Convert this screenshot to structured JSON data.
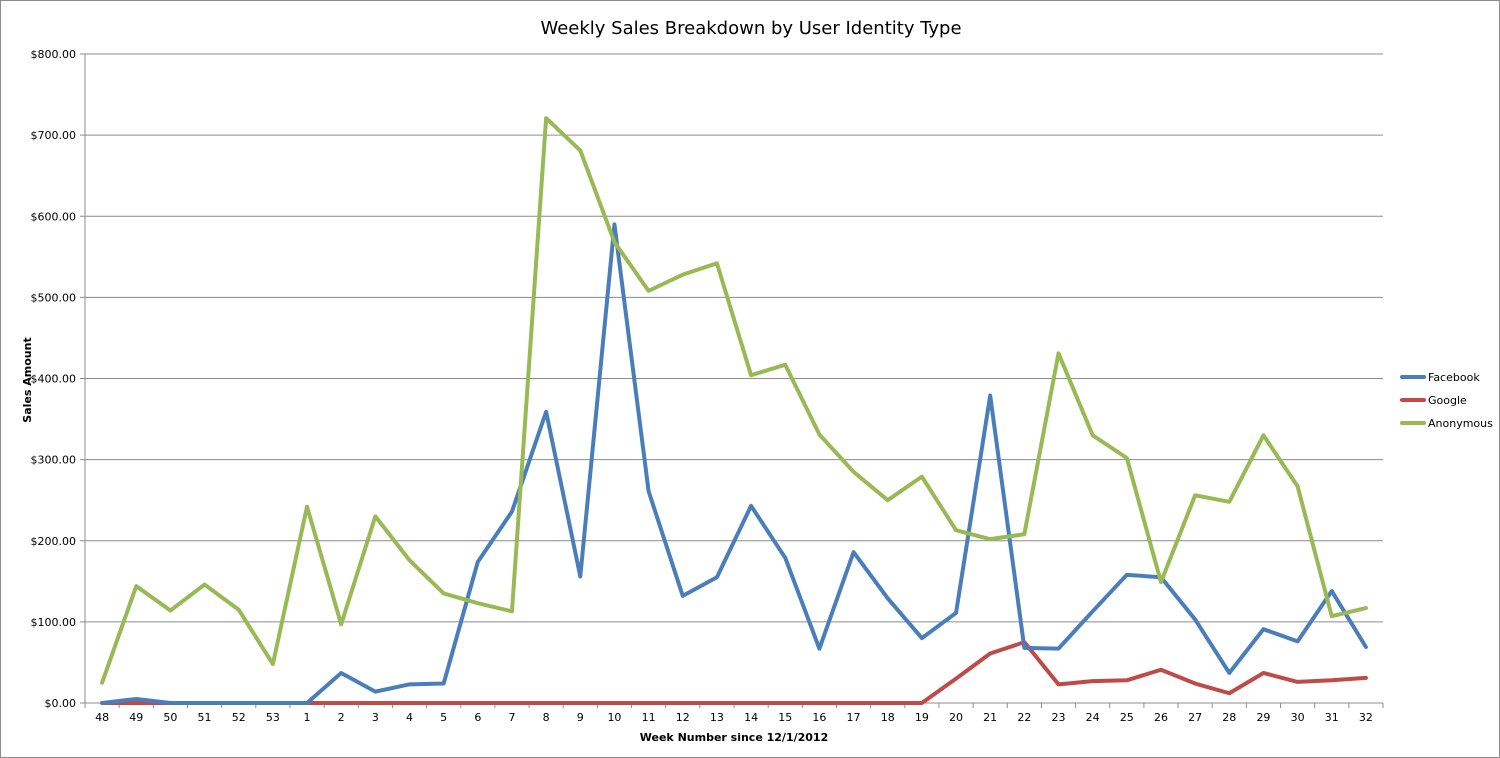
{
  "chart_data": {
    "type": "line",
    "title": "Weekly Sales Breakdown by User Identity Type",
    "xlabel": "Week Number since 12/1/2012",
    "ylabel": "Sales Amount",
    "ylim": [
      0,
      800
    ],
    "yticks": [
      0,
      100,
      200,
      300,
      400,
      500,
      600,
      700,
      800
    ],
    "ytick_labels": [
      "$0.00",
      "$100.00",
      "$200.00",
      "$300.00",
      "$400.00",
      "$500.00",
      "$600.00",
      "$700.00",
      "$800.00"
    ],
    "grid": "horizontal",
    "legend_position": "right",
    "categories": [
      "48",
      "49",
      "50",
      "51",
      "52",
      "53",
      "1",
      "2",
      "3",
      "4",
      "5",
      "6",
      "7",
      "8",
      "9",
      "10",
      "11",
      "12",
      "13",
      "14",
      "15",
      "16",
      "17",
      "18",
      "19",
      "20",
      "21",
      "22",
      "23",
      "24",
      "25",
      "26",
      "27",
      "28",
      "29",
      "30",
      "31",
      "32"
    ],
    "series": [
      {
        "name": "Facebook",
        "color": "#4a7ebb",
        "values": [
          0,
          5,
          0,
          0,
          0,
          0,
          0,
          37,
          14,
          23,
          24,
          174,
          236,
          359,
          156,
          590,
          261,
          132,
          155,
          243,
          179,
          67,
          186,
          129,
          80,
          111,
          379,
          68,
          67,
          113,
          158,
          155,
          103,
          37,
          91,
          76,
          138,
          69
        ]
      },
      {
        "name": "Google",
        "color": "#be4b48",
        "values": [
          0,
          0,
          0,
          0,
          0,
          0,
          0,
          0,
          0,
          0,
          0,
          0,
          0,
          0,
          0,
          0,
          0,
          0,
          0,
          0,
          0,
          0,
          0,
          0,
          0,
          30,
          61,
          75,
          23,
          27,
          28,
          41,
          24,
          12,
          37,
          26,
          28,
          31
        ]
      },
      {
        "name": "Anonymous",
        "color": "#98b954",
        "values": [
          25,
          144,
          114,
          146,
          115,
          48,
          242,
          97,
          230,
          176,
          135,
          123,
          113,
          721,
          681,
          568,
          508,
          528,
          542,
          404,
          417,
          331,
          285,
          250,
          279,
          213,
          202,
          208,
          431,
          330,
          302,
          149,
          256,
          248,
          330,
          267,
          107,
          117
        ]
      }
    ]
  }
}
